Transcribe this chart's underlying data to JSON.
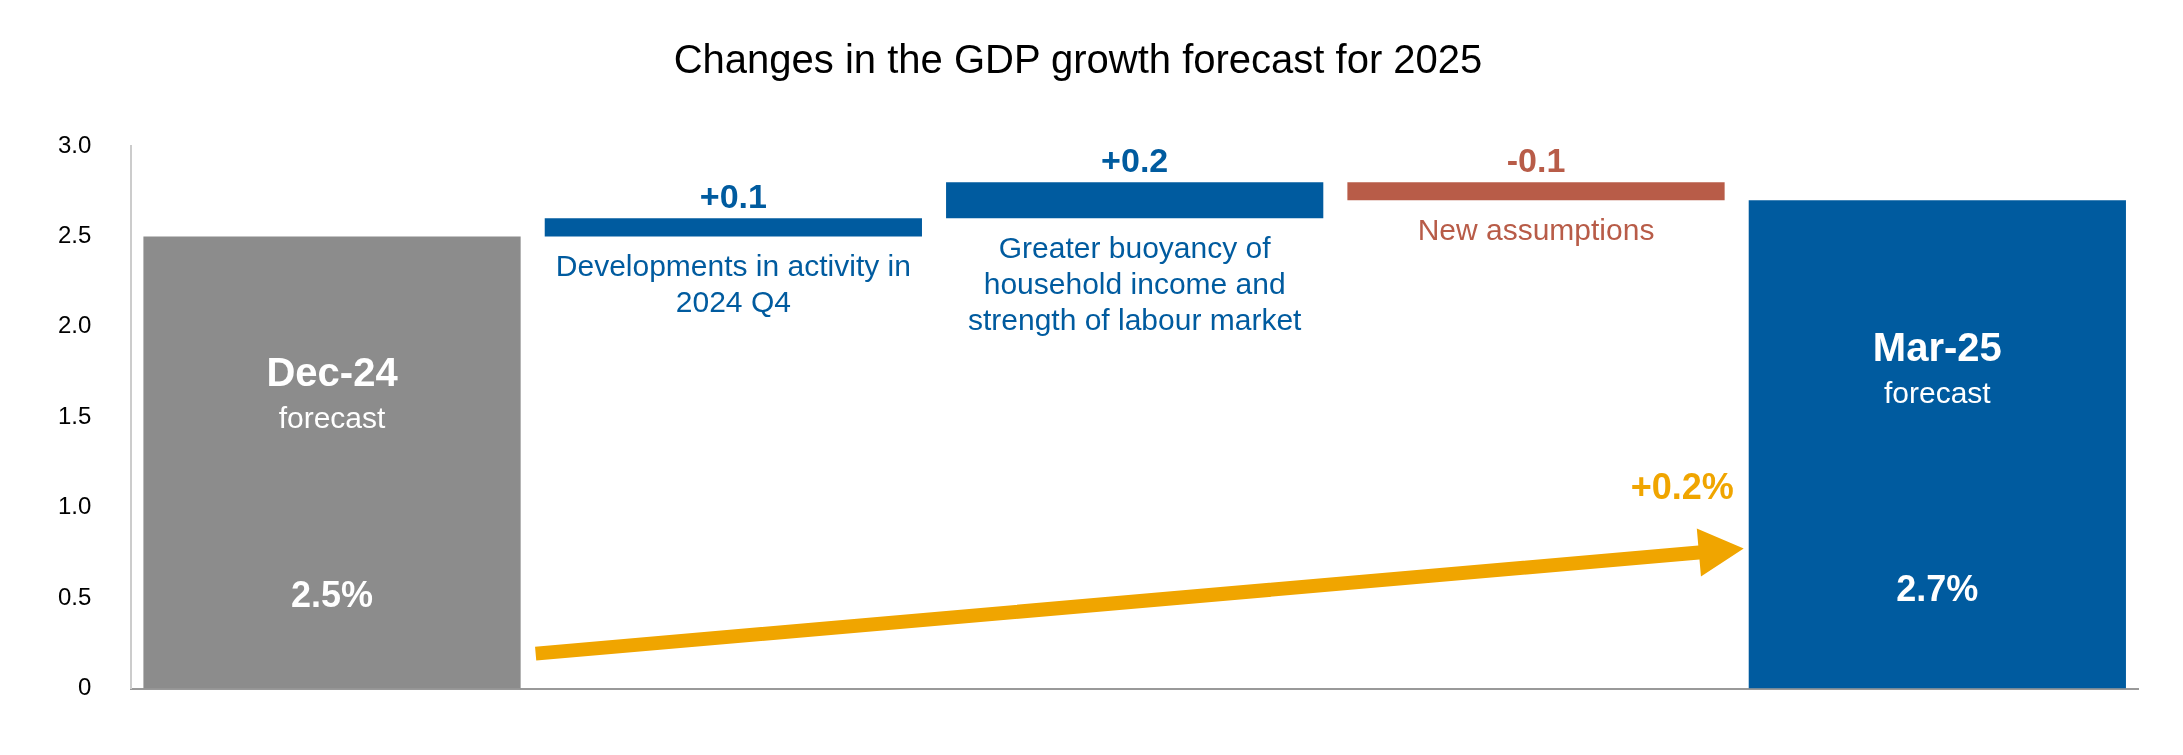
{
  "chart_data": {
    "type": "bar",
    "title": "Changes in the GDP growth forecast for 2025",
    "categories": [
      "Dec-24 forecast",
      "Developments in activity in 2024 Q4",
      "Greater buoyancy of household income and strength of labour market",
      "New assumptions",
      "Mar-25 forecast"
    ],
    "values": [
      2.5,
      0.1,
      0.2,
      -0.1,
      2.7
    ],
    "base": [
      null,
      2.5,
      2.6,
      2.8,
      null
    ],
    "colors": [
      "#8c8c8c",
      "#005b9f",
      "#005b9f",
      "#b85c48",
      "#005b9f"
    ],
    "value_labels": [
      "2.5%",
      "+0.1",
      "+0.2",
      "-0.1",
      "2.7%"
    ],
    "ylim": [
      0,
      3
    ],
    "yticks": [
      0,
      0.5,
      {
        "value": 1,
        "label": "1.0"
      },
      1.5,
      {
        "value": 2,
        "label": "2.0"
      },
      2.5,
      {
        "value": 3,
        "label": "3.0"
      }
    ],
    "tick_labels": "y",
    "grid": false,
    "legend": false,
    "annotations": [
      "+0.2%"
    ]
  }
}
